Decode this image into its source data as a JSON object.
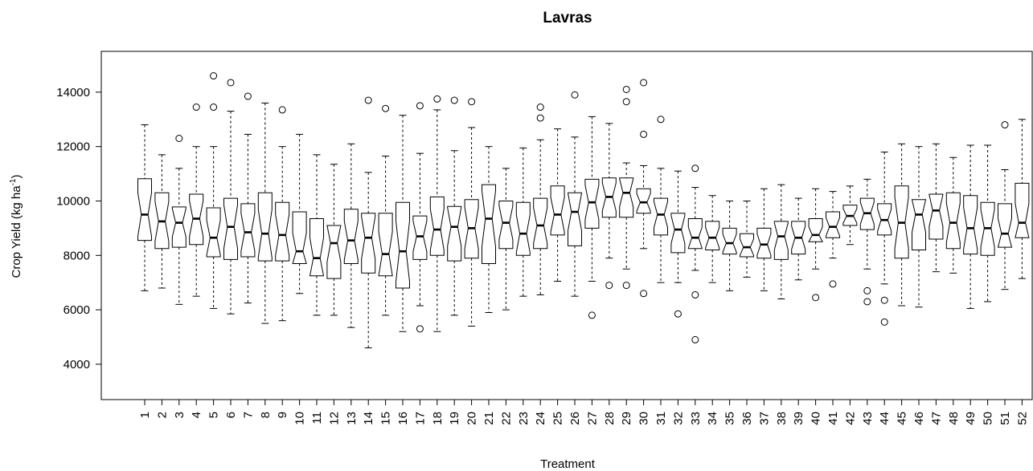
{
  "chart_data": {
    "type": "boxplot",
    "notched": true,
    "title": "Lavras",
    "xlabel": "Treatment",
    "ylabel_main": "Crop Yield (kg ha",
    "ylabel_sup": "-1",
    "ylabel_end": ")",
    "ylim": [
      2700,
      15500
    ],
    "yticks": [
      4000,
      6000,
      8000,
      10000,
      12000,
      14000
    ],
    "ytick_labels": [
      "4000",
      "6000",
      "8000",
      "10000",
      "12000",
      "14000"
    ],
    "categories": [
      "1",
      "2",
      "3",
      "4",
      "5",
      "6",
      "7",
      "8",
      "9",
      "10",
      "11",
      "12",
      "13",
      "14",
      "15",
      "16",
      "17",
      "18",
      "19",
      "20",
      "21",
      "22",
      "23",
      "24",
      "25",
      "26",
      "27",
      "28",
      "29",
      "30",
      "31",
      "32",
      "33",
      "34",
      "35",
      "36",
      "37",
      "38",
      "39",
      "40",
      "41",
      "42",
      "43",
      "44",
      "45",
      "46",
      "47",
      "48",
      "49",
      "50",
      "51",
      "52"
    ],
    "boxes": [
      {
        "min": 6700,
        "q1": 8550,
        "median": 9500,
        "q3": 10820,
        "max": 12800,
        "outliers": []
      },
      {
        "min": 6800,
        "q1": 8250,
        "median": 9250,
        "q3": 10300,
        "max": 11700,
        "outliers": []
      },
      {
        "min": 6200,
        "q1": 8300,
        "median": 9200,
        "q3": 9780,
        "max": 11200,
        "outliers": [
          12300
        ]
      },
      {
        "min": 6500,
        "q1": 8400,
        "median": 9350,
        "q3": 10250,
        "max": 12000,
        "outliers": [
          13450
        ]
      },
      {
        "min": 6050,
        "q1": 7950,
        "median": 8650,
        "q3": 9750,
        "max": 12000,
        "outliers": [
          13450,
          14600
        ]
      },
      {
        "min": 5850,
        "q1": 7850,
        "median": 9050,
        "q3": 10100,
        "max": 13300,
        "outliers": [
          14350
        ]
      },
      {
        "min": 6250,
        "q1": 7950,
        "median": 8850,
        "q3": 9900,
        "max": 12450,
        "outliers": [
          13850
        ]
      },
      {
        "min": 5500,
        "q1": 7800,
        "median": 8800,
        "q3": 10300,
        "max": 13600,
        "outliers": []
      },
      {
        "min": 5600,
        "q1": 7800,
        "median": 8750,
        "q3": 9950,
        "max": 12000,
        "outliers": [
          13350
        ]
      },
      {
        "min": 6600,
        "q1": 7700,
        "median": 8150,
        "q3": 9600,
        "max": 12450,
        "outliers": []
      },
      {
        "min": 5800,
        "q1": 7250,
        "median": 7900,
        "q3": 9350,
        "max": 11700,
        "outliers": []
      },
      {
        "min": 5800,
        "q1": 7150,
        "median": 8450,
        "q3": 9100,
        "max": 11350,
        "outliers": []
      },
      {
        "min": 5350,
        "q1": 7700,
        "median": 8550,
        "q3": 9700,
        "max": 12100,
        "outliers": []
      },
      {
        "min": 4600,
        "q1": 7350,
        "median": 8650,
        "q3": 9550,
        "max": 11050,
        "outliers": [
          13700
        ]
      },
      {
        "min": 5800,
        "q1": 7250,
        "median": 8050,
        "q3": 9550,
        "max": 11650,
        "outliers": [
          13400
        ]
      },
      {
        "min": 5200,
        "q1": 6800,
        "median": 8150,
        "q3": 9950,
        "max": 13150,
        "outliers": []
      },
      {
        "min": 6150,
        "q1": 7850,
        "median": 8700,
        "q3": 9450,
        "max": 11750,
        "outliers": [
          5300,
          13500
        ]
      },
      {
        "min": 5200,
        "q1": 8000,
        "median": 8950,
        "q3": 10150,
        "max": 13350,
        "outliers": [
          13750
        ]
      },
      {
        "min": 5800,
        "q1": 7800,
        "median": 9050,
        "q3": 9800,
        "max": 11850,
        "outliers": [
          13700
        ]
      },
      {
        "min": 5400,
        "q1": 7900,
        "median": 9000,
        "q3": 10050,
        "max": 12700,
        "outliers": [
          13650
        ]
      },
      {
        "min": 5900,
        "q1": 7700,
        "median": 9350,
        "q3": 10600,
        "max": 12000,
        "outliers": []
      },
      {
        "min": 6000,
        "q1": 8250,
        "median": 9200,
        "q3": 10000,
        "max": 11200,
        "outliers": []
      },
      {
        "min": 6500,
        "q1": 8000,
        "median": 8800,
        "q3": 9950,
        "max": 11950,
        "outliers": []
      },
      {
        "min": 6550,
        "q1": 8250,
        "median": 9100,
        "q3": 10100,
        "max": 12250,
        "outliers": [
          13050,
          13450
        ]
      },
      {
        "min": 7050,
        "q1": 8750,
        "median": 9500,
        "q3": 10550,
        "max": 12650,
        "outliers": []
      },
      {
        "min": 6500,
        "q1": 8350,
        "median": 9600,
        "q3": 10300,
        "max": 12350,
        "outliers": [
          13900
        ]
      },
      {
        "min": 7050,
        "q1": 9000,
        "median": 9950,
        "q3": 10800,
        "max": 13100,
        "outliers": [
          5800
        ]
      },
      {
        "min": 7900,
        "q1": 9400,
        "median": 10150,
        "q3": 10850,
        "max": 12850,
        "outliers": [
          6900
        ]
      },
      {
        "min": 7500,
        "q1": 9400,
        "median": 10300,
        "q3": 10850,
        "max": 11400,
        "outliers": [
          6900,
          13650,
          14100
        ]
      },
      {
        "min": 8250,
        "q1": 9550,
        "median": 9950,
        "q3": 10450,
        "max": 11300,
        "outliers": [
          6600,
          12450,
          14350
        ]
      },
      {
        "min": 7000,
        "q1": 8750,
        "median": 9500,
        "q3": 10100,
        "max": 11200,
        "outliers": [
          13000
        ]
      },
      {
        "min": 7000,
        "q1": 8100,
        "median": 8950,
        "q3": 9550,
        "max": 11100,
        "outliers": [
          5850
        ]
      },
      {
        "min": 7450,
        "q1": 8250,
        "median": 8650,
        "q3": 9350,
        "max": 10500,
        "outliers": [
          4900,
          6550,
          11200
        ]
      },
      {
        "min": 7000,
        "q1": 8200,
        "median": 8650,
        "q3": 9250,
        "max": 10200,
        "outliers": []
      },
      {
        "min": 6700,
        "q1": 8050,
        "median": 8450,
        "q3": 9000,
        "max": 10000,
        "outliers": []
      },
      {
        "min": 7200,
        "q1": 7950,
        "median": 8300,
        "q3": 8800,
        "max": 10000,
        "outliers": []
      },
      {
        "min": 6700,
        "q1": 7900,
        "median": 8400,
        "q3": 9000,
        "max": 10450,
        "outliers": []
      },
      {
        "min": 6400,
        "q1": 7850,
        "median": 8700,
        "q3": 9250,
        "max": 10600,
        "outliers": []
      },
      {
        "min": 7100,
        "q1": 8050,
        "median": 8650,
        "q3": 9250,
        "max": 10100,
        "outliers": []
      },
      {
        "min": 7500,
        "q1": 8500,
        "median": 8750,
        "q3": 9350,
        "max": 10450,
        "outliers": [
          6450
        ]
      },
      {
        "min": 7900,
        "q1": 8650,
        "median": 9050,
        "q3": 9600,
        "max": 10350,
        "outliers": [
          6950
        ]
      },
      {
        "min": 8400,
        "q1": 9100,
        "median": 9450,
        "q3": 9850,
        "max": 10550,
        "outliers": []
      },
      {
        "min": 7500,
        "q1": 8950,
        "median": 9550,
        "q3": 10100,
        "max": 10800,
        "outliers": [
          6300,
          6700
        ]
      },
      {
        "min": 6950,
        "q1": 8750,
        "median": 9300,
        "q3": 9900,
        "max": 11800,
        "outliers": [
          5550,
          6350
        ]
      },
      {
        "min": 6150,
        "q1": 7900,
        "median": 9200,
        "q3": 10550,
        "max": 12100,
        "outliers": []
      },
      {
        "min": 6100,
        "q1": 8200,
        "median": 9500,
        "q3": 10050,
        "max": 12000,
        "outliers": []
      },
      {
        "min": 7400,
        "q1": 8600,
        "median": 9650,
        "q3": 10250,
        "max": 12100,
        "outliers": []
      },
      {
        "min": 7350,
        "q1": 8250,
        "median": 9200,
        "q3": 10300,
        "max": 11600,
        "outliers": []
      },
      {
        "min": 6050,
        "q1": 8050,
        "median": 9000,
        "q3": 10200,
        "max": 12050,
        "outliers": []
      },
      {
        "min": 6300,
        "q1": 8000,
        "median": 9000,
        "q3": 9950,
        "max": 12050,
        "outliers": []
      },
      {
        "min": 6750,
        "q1": 8300,
        "median": 8800,
        "q3": 9900,
        "max": 11150,
        "outliers": [
          12800
        ]
      },
      {
        "min": 7150,
        "q1": 8650,
        "median": 9200,
        "q3": 10650,
        "max": 13000,
        "outliers": []
      }
    ]
  }
}
